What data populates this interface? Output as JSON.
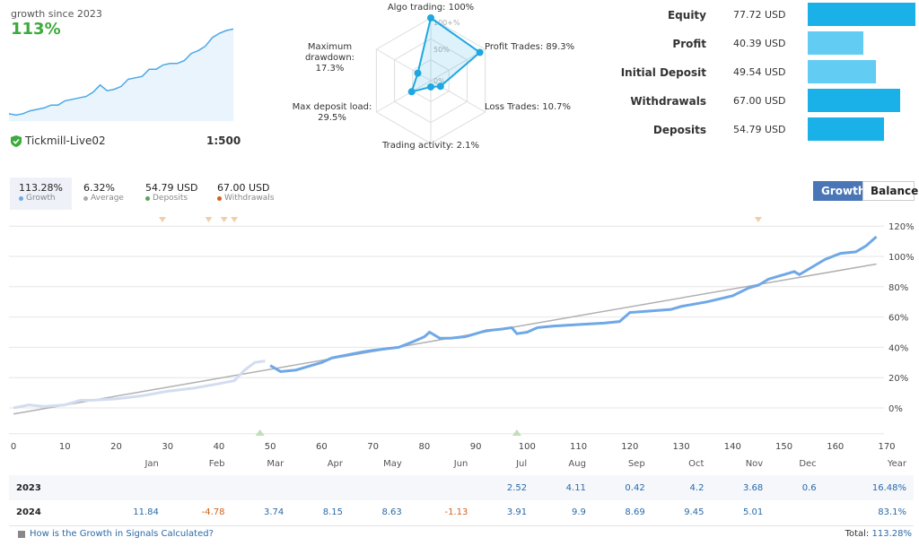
{
  "summary": {
    "growth_label": "growth since 2023",
    "growth_value": "113%",
    "broker": "Tickmill-Live02",
    "leverage": "1:500",
    "mini_series": [
      2,
      1,
      2,
      4,
      5,
      6,
      8,
      8,
      11,
      12,
      13,
      14,
      17,
      22,
      18,
      19,
      21,
      26,
      27,
      28,
      33,
      33,
      36,
      37,
      37,
      39,
      44,
      46,
      49,
      55,
      58,
      60,
      61
    ]
  },
  "radar": {
    "axes": [
      {
        "label": "Algo trading: 100%",
        "value": 100
      },
      {
        "label": "Profit Trades: 89.3%",
        "value": 89.3
      },
      {
        "label": "Loss Trades: 10.7%",
        "value": 10.7
      },
      {
        "label": "Trading activity: 2.1%",
        "value": 2.1
      },
      {
        "label": "Max deposit load:",
        "value2": "29.5%",
        "value": 29.5
      },
      {
        "label": "Maximum drawdown:",
        "value2": "17.3%",
        "value": 17.3
      }
    ],
    "ring_labels": [
      "100+%",
      "50%",
      "0%"
    ],
    "color": "#1ea7e1"
  },
  "balance_bars": [
    {
      "label": "Equity",
      "value": "77.72 USD",
      "amount": 77.72,
      "color": "#1ab1e8"
    },
    {
      "label": "Profit",
      "value": "40.39 USD",
      "amount": 40.39,
      "color": "#62ccf2"
    },
    {
      "label": "Initial Deposit",
      "value": "49.54 USD",
      "amount": 49.54,
      "color": "#62ccf2"
    },
    {
      "label": "Withdrawals",
      "value": "67.00 USD",
      "amount": 67.0,
      "color": "#1ab1e8"
    },
    {
      "label": "Deposits",
      "value": "54.79 USD",
      "amount": 54.79,
      "color": "#1ab1e8"
    }
  ],
  "stats": [
    {
      "value": "113.28%",
      "label": "Growth",
      "color": "#6fa8e6"
    },
    {
      "value": "6.32%",
      "label": "Average",
      "color": "#aaaaaa"
    },
    {
      "value": "54.79 USD",
      "label": "Deposits",
      "color": "#5aa55a"
    },
    {
      "value": "67.00 USD",
      "label": "Withdrawals",
      "color": "#d2611c"
    }
  ],
  "toggle": {
    "growth": "Growth",
    "balance": "Balance"
  },
  "chart_data": {
    "type": "line",
    "xlim": [
      0,
      170
    ],
    "ylim": [
      -10,
      120
    ],
    "grid": true,
    "x_ticks": [
      0,
      10,
      20,
      30,
      40,
      50,
      60,
      70,
      80,
      90,
      100,
      110,
      120,
      130,
      140,
      150,
      160,
      170
    ],
    "y_ticks": [
      "120%",
      "100%",
      "80%",
      "60%",
      "40%",
      "20%",
      "0%"
    ],
    "y_tick_values": [
      120,
      100,
      80,
      60,
      40,
      20,
      0
    ],
    "series": [
      {
        "color": "#6fa8e6",
        "x": [
          0,
          3,
          6,
          10,
          13,
          15,
          20,
          25,
          30,
          35,
          40,
          43,
          45,
          47,
          49,
          50,
          52,
          55,
          58,
          60,
          62,
          65,
          68,
          70,
          75,
          78,
          80,
          81,
          83,
          85,
          88,
          90,
          92,
          95,
          97,
          98,
          100,
          102,
          105,
          110,
          115,
          118,
          120,
          124,
          128,
          130,
          135,
          140,
          143,
          145,
          147,
          149,
          150,
          152,
          153,
          155,
          158,
          161,
          164,
          166,
          168
        ],
        "y": [
          0,
          2,
          1,
          2,
          5,
          5,
          6,
          8,
          11,
          13,
          16,
          18,
          25,
          30,
          31,
          28,
          24,
          25,
          28,
          30,
          33,
          35,
          37,
          38,
          40,
          44,
          47,
          50,
          46,
          46,
          47,
          49,
          51,
          52,
          53,
          49,
          50,
          53,
          54,
          55,
          56,
          57,
          63,
          64,
          65,
          67,
          70,
          74,
          79,
          81,
          85,
          87,
          88,
          90,
          88,
          92,
          98,
          102,
          103,
          107,
          113
        ]
      },
      {
        "color": "#b0b0b0",
        "x": [
          0,
          168
        ],
        "y": [
          -4,
          95
        ]
      }
    ],
    "withdrawal_markers": [
      29,
      38,
      41,
      43,
      145
    ],
    "deposit_markers": [
      48,
      98
    ]
  },
  "table": {
    "headers": [
      "",
      "Jan",
      "Feb",
      "Mar",
      "Apr",
      "May",
      "Jun",
      "Jul",
      "Aug",
      "Sep",
      "Oct",
      "Nov",
      "Dec",
      "Year"
    ],
    "rows": [
      [
        "2023",
        "",
        "",
        "",
        "",
        "",
        "",
        "2.52",
        "4.11",
        "0.42",
        "4.2",
        "3.68",
        "0.6",
        "16.48%"
      ],
      [
        "2024",
        "11.84",
        "-4.78",
        "3.74",
        "8.15",
        "8.63",
        "-1.13",
        "3.91",
        "9.9",
        "8.69",
        "9.45",
        "5.01",
        "",
        "83.1%"
      ]
    ]
  },
  "footer": {
    "help_link": "How is the Growth in Signals Calculated?",
    "total_label": "Total:",
    "total_value": "113.28%"
  }
}
